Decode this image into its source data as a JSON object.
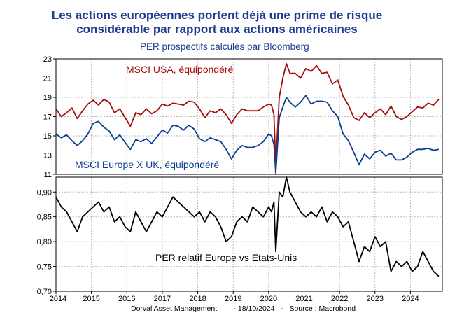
{
  "title_line1": "Les actions européennes portent déjà une prime de risque",
  "title_line2": "considérable par rapport aux actions américaines",
  "subtitle": "PER prospectifs calculés par Bloomberg",
  "footer": {
    "source": "Dorval Asset Management",
    "date": "- 18/10/2024",
    "provider": "-   Source : Macrobond"
  },
  "colors": {
    "usa": "#a50e0e",
    "europe": "#0b3d91",
    "relative": "#000000",
    "title": "#1f3a93"
  },
  "chart_data": [
    {
      "type": "line",
      "title": "PER prospectifs calculés par Bloomberg",
      "ylim": [
        11,
        23
      ],
      "yticks": [
        11,
        13,
        15,
        17,
        19,
        21,
        23
      ],
      "xlim": [
        2014.0,
        2024.9
      ],
      "xticks": [
        2014,
        2015,
        2016,
        2017,
        2018,
        2019,
        2020,
        2021,
        2022,
        2023,
        2024
      ],
      "series": [
        {
          "name": "MSCI USA, équipondéré",
          "x": [
            2014.0,
            2014.15,
            2014.3,
            2014.45,
            2014.6,
            2014.75,
            2014.9,
            2015.05,
            2015.2,
            2015.35,
            2015.5,
            2015.65,
            2015.8,
            2015.95,
            2016.1,
            2016.25,
            2016.4,
            2016.55,
            2016.7,
            2016.85,
            2017.0,
            2017.15,
            2017.3,
            2017.45,
            2017.6,
            2017.75,
            2017.9,
            2018.05,
            2018.2,
            2018.35,
            2018.5,
            2018.65,
            2018.8,
            2018.95,
            2019.1,
            2019.25,
            2019.4,
            2019.55,
            2019.7,
            2019.85,
            2020.0,
            2020.08,
            2020.15,
            2020.2,
            2020.3,
            2020.4,
            2020.5,
            2020.6,
            2020.75,
            2020.9,
            2021.05,
            2021.2,
            2021.35,
            2021.5,
            2021.65,
            2021.8,
            2021.95,
            2022.1,
            2022.25,
            2022.4,
            2022.55,
            2022.7,
            2022.85,
            2023.0,
            2023.15,
            2023.3,
            2023.45,
            2023.6,
            2023.75,
            2023.9,
            2024.05,
            2024.2,
            2024.35,
            2024.5,
            2024.65,
            2024.8
          ],
          "y": [
            17.8,
            17.0,
            17.4,
            17.9,
            16.8,
            17.6,
            18.3,
            18.7,
            18.2,
            18.8,
            18.5,
            17.4,
            17.8,
            16.9,
            16.0,
            17.4,
            17.2,
            17.8,
            17.3,
            17.6,
            18.3,
            18.1,
            18.4,
            18.3,
            18.2,
            18.6,
            18.5,
            17.8,
            16.9,
            17.6,
            17.4,
            17.8,
            17.2,
            16.3,
            17.2,
            17.8,
            17.6,
            17.6,
            17.6,
            18.0,
            18.3,
            18.2,
            17.2,
            12.0,
            19.0,
            21.0,
            22.5,
            21.5,
            21.5,
            21.0,
            22.0,
            21.7,
            22.3,
            21.5,
            21.6,
            20.4,
            20.8,
            19.1,
            18.2,
            16.9,
            16.6,
            17.4,
            16.9,
            17.4,
            17.8,
            17.2,
            18.1,
            17.0,
            16.7,
            17.0,
            17.5,
            18.0,
            17.9,
            18.4,
            18.2,
            18.8
          ]
        },
        {
          "name": "MSCI Europe X UK, équipondéré",
          "x": [
            2014.0,
            2014.15,
            2014.3,
            2014.45,
            2014.6,
            2014.75,
            2014.9,
            2015.05,
            2015.2,
            2015.35,
            2015.5,
            2015.65,
            2015.8,
            2015.95,
            2016.1,
            2016.25,
            2016.4,
            2016.55,
            2016.7,
            2016.85,
            2017.0,
            2017.15,
            2017.3,
            2017.45,
            2017.6,
            2017.75,
            2017.9,
            2018.05,
            2018.2,
            2018.35,
            2018.5,
            2018.65,
            2018.8,
            2018.95,
            2019.1,
            2019.25,
            2019.4,
            2019.55,
            2019.7,
            2019.85,
            2020.0,
            2020.08,
            2020.15,
            2020.2,
            2020.3,
            2020.4,
            2020.5,
            2020.6,
            2020.75,
            2020.9,
            2021.05,
            2021.2,
            2021.35,
            2021.5,
            2021.65,
            2021.8,
            2021.95,
            2022.1,
            2022.25,
            2022.4,
            2022.55,
            2022.7,
            2022.85,
            2023.0,
            2023.15,
            2023.3,
            2023.45,
            2023.6,
            2023.75,
            2023.9,
            2024.05,
            2024.2,
            2024.35,
            2024.5,
            2024.65,
            2024.8
          ],
          "y": [
            15.2,
            14.8,
            15.1,
            14.5,
            14.0,
            14.5,
            15.2,
            16.3,
            16.5,
            15.9,
            15.5,
            14.6,
            15.1,
            14.3,
            13.6,
            14.6,
            14.4,
            14.7,
            14.2,
            14.9,
            15.6,
            15.3,
            16.1,
            16.0,
            15.6,
            16.1,
            15.7,
            14.7,
            14.4,
            14.8,
            14.6,
            14.4,
            13.6,
            12.6,
            13.5,
            14.0,
            13.8,
            13.8,
            14.0,
            14.4,
            15.2,
            15.0,
            14.1,
            11.1,
            16.9,
            18.0,
            19.0,
            18.5,
            18.0,
            18.5,
            19.2,
            18.3,
            18.6,
            18.6,
            18.5,
            17.6,
            17.0,
            15.2,
            14.5,
            13.3,
            12.0,
            13.1,
            12.6,
            13.3,
            13.5,
            12.9,
            13.2,
            12.5,
            12.5,
            12.8,
            13.3,
            13.6,
            13.6,
            13.7,
            13.5,
            13.6
          ]
        }
      ]
    },
    {
      "type": "line",
      "title": "",
      "ylim": [
        0.7,
        0.93
      ],
      "yticks": [
        0.7,
        0.75,
        0.8,
        0.85,
        0.9
      ],
      "ytick_labels": [
        "0,70",
        "0,75",
        "0,80",
        "0,85",
        "0,90"
      ],
      "xlim": [
        2014.0,
        2024.9
      ],
      "xticks": [
        2014,
        2015,
        2016,
        2017,
        2018,
        2019,
        2020,
        2021,
        2022,
        2023,
        2024
      ],
      "series": [
        {
          "name": "PER relatif Europe vs Etats-Unis",
          "x": [
            2014.0,
            2014.15,
            2014.3,
            2014.45,
            2014.6,
            2014.75,
            2014.9,
            2015.05,
            2015.2,
            2015.35,
            2015.5,
            2015.65,
            2015.8,
            2015.95,
            2016.1,
            2016.25,
            2016.4,
            2016.55,
            2016.7,
            2016.85,
            2017.0,
            2017.15,
            2017.3,
            2017.45,
            2017.6,
            2017.75,
            2017.9,
            2018.05,
            2018.2,
            2018.35,
            2018.5,
            2018.65,
            2018.8,
            2018.95,
            2019.1,
            2019.25,
            2019.4,
            2019.55,
            2019.7,
            2019.85,
            2020.0,
            2020.08,
            2020.15,
            2020.2,
            2020.3,
            2020.4,
            2020.5,
            2020.6,
            2020.75,
            2020.9,
            2021.05,
            2021.2,
            2021.35,
            2021.5,
            2021.65,
            2021.8,
            2021.95,
            2022.1,
            2022.25,
            2022.4,
            2022.55,
            2022.7,
            2022.85,
            2023.0,
            2023.15,
            2023.3,
            2023.45,
            2023.6,
            2023.75,
            2023.9,
            2024.05,
            2024.2,
            2024.35,
            2024.5,
            2024.65,
            2024.8
          ],
          "y": [
            0.89,
            0.87,
            0.86,
            0.84,
            0.82,
            0.85,
            0.86,
            0.87,
            0.88,
            0.86,
            0.87,
            0.84,
            0.85,
            0.83,
            0.82,
            0.86,
            0.84,
            0.82,
            0.84,
            0.86,
            0.85,
            0.87,
            0.89,
            0.88,
            0.87,
            0.86,
            0.85,
            0.86,
            0.84,
            0.86,
            0.85,
            0.83,
            0.8,
            0.81,
            0.84,
            0.85,
            0.84,
            0.87,
            0.86,
            0.85,
            0.87,
            0.86,
            0.88,
            0.78,
            0.9,
            0.89,
            0.93,
            0.9,
            0.88,
            0.86,
            0.85,
            0.86,
            0.85,
            0.87,
            0.84,
            0.86,
            0.85,
            0.83,
            0.84,
            0.8,
            0.76,
            0.79,
            0.78,
            0.81,
            0.79,
            0.8,
            0.74,
            0.76,
            0.75,
            0.76,
            0.74,
            0.75,
            0.78,
            0.76,
            0.74,
            0.73
          ]
        }
      ]
    }
  ]
}
